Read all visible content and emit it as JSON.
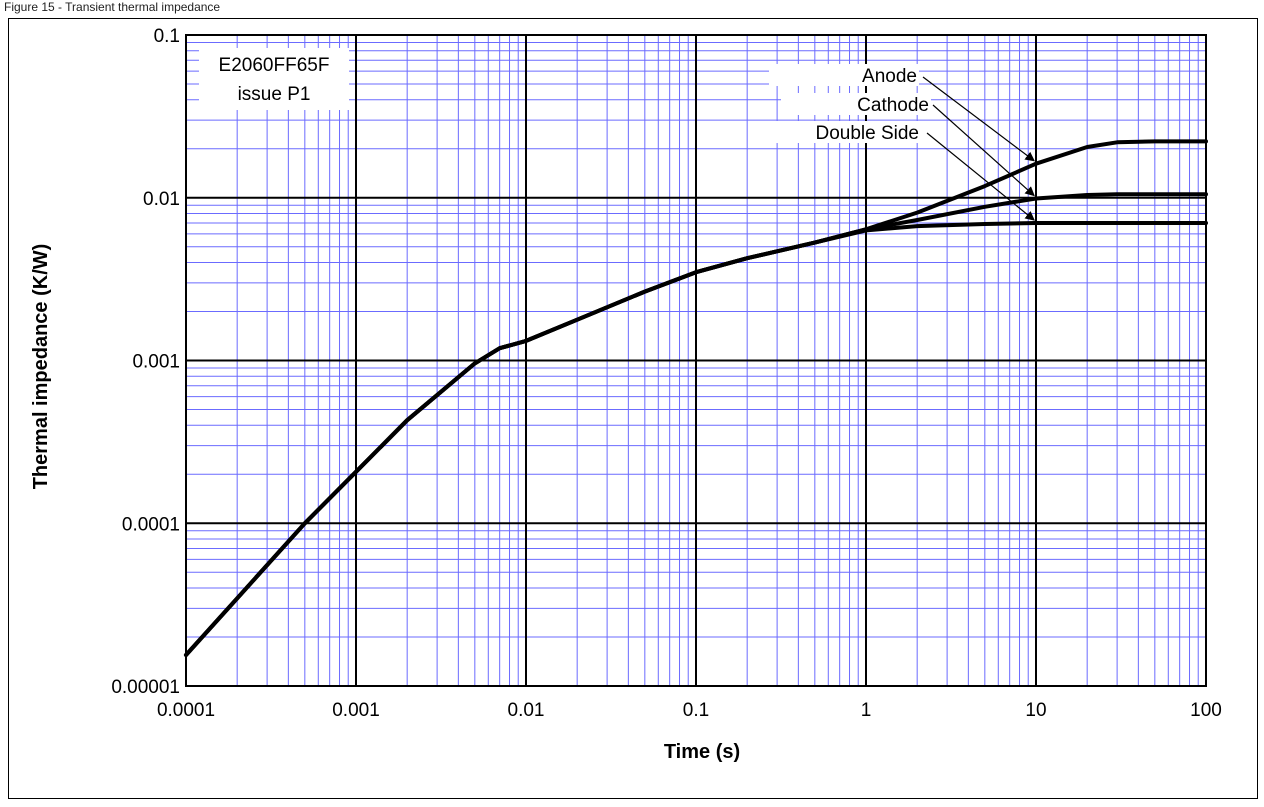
{
  "caption": "Figure 15 - Transient thermal impedance",
  "chart_data": {
    "type": "line",
    "title": "",
    "xlabel": "Time (s)",
    "ylabel": "Thermal impedance (K/W)",
    "xscale": "log",
    "yscale": "log",
    "xlim": [
      0.0001,
      100
    ],
    "ylim": [
      1e-05,
      0.1
    ],
    "x_tick_labels": [
      "0.0001",
      "0.001",
      "0.01",
      "0.1",
      "1",
      "10",
      "100"
    ],
    "y_tick_labels": [
      "0.00001",
      "0.0001",
      "0.001",
      "0.01",
      "0.1"
    ],
    "grid": true,
    "legend": "none",
    "annotation": [
      "E2060FF65F",
      "issue P1"
    ],
    "series": [
      {
        "name": "Anode",
        "x": [
          0.0001,
          0.0002,
          0.0005,
          0.001,
          0.002,
          0.005,
          0.007,
          0.01,
          0.02,
          0.05,
          0.1,
          0.2,
          0.5,
          1,
          2,
          5,
          10,
          20,
          30,
          50,
          100
        ],
        "y": [
          1.55e-05,
          3.46e-05,
          0.0001,
          0.000207,
          0.00043,
          0.00096,
          0.00119,
          0.00132,
          0.00178,
          0.00265,
          0.00349,
          0.00425,
          0.0053,
          0.0064,
          0.0081,
          0.0118,
          0.0162,
          0.0205,
          0.0219,
          0.0222,
          0.0222
        ]
      },
      {
        "name": "Cathode",
        "x": [
          0.0001,
          0.0002,
          0.0005,
          0.001,
          0.002,
          0.005,
          0.007,
          0.01,
          0.02,
          0.05,
          0.1,
          0.2,
          0.5,
          1,
          2,
          5,
          10,
          20,
          30,
          50,
          100
        ],
        "y": [
          1.55e-05,
          3.46e-05,
          0.0001,
          0.000207,
          0.00043,
          0.00096,
          0.00119,
          0.00132,
          0.00178,
          0.00265,
          0.00349,
          0.00425,
          0.0053,
          0.0064,
          0.0073,
          0.0088,
          0.0099,
          0.0104,
          0.0105,
          0.0105,
          0.0105
        ]
      },
      {
        "name": "Double  Side",
        "x": [
          0.0001,
          0.0002,
          0.0005,
          0.001,
          0.002,
          0.005,
          0.007,
          0.01,
          0.02,
          0.05,
          0.1,
          0.2,
          0.5,
          1,
          2,
          5,
          10,
          20,
          30,
          50,
          100
        ],
        "y": [
          1.55e-05,
          3.46e-05,
          0.0001,
          0.000207,
          0.00043,
          0.00096,
          0.00119,
          0.00132,
          0.00178,
          0.00265,
          0.00349,
          0.00425,
          0.0053,
          0.0063,
          0.0067,
          0.0069,
          0.007,
          0.007,
          0.007,
          0.007,
          0.007
        ]
      }
    ],
    "colors": {
      "curve": "#000000",
      "minor_grid": "#6b6bff",
      "major_grid": "#000000"
    }
  }
}
